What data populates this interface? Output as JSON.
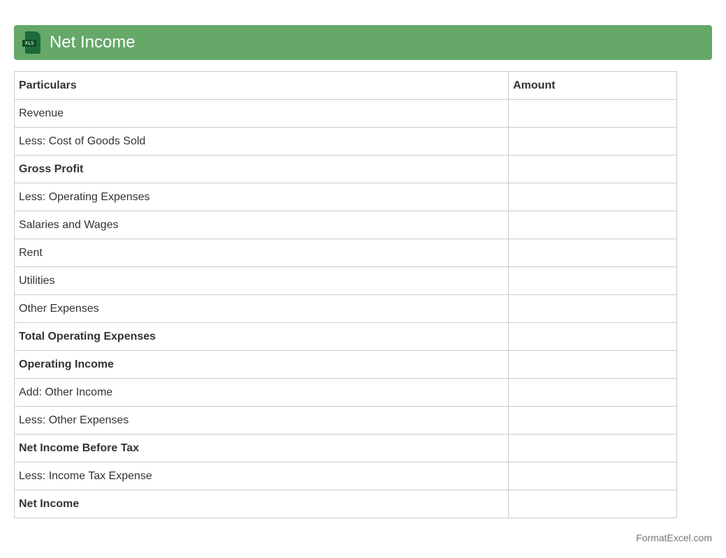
{
  "header": {
    "title": "Net Income",
    "icon": "xls-file-icon",
    "icon_label": "XLS",
    "color": "#65a868"
  },
  "table": {
    "columns": [
      "Particulars",
      "Amount"
    ],
    "rows": [
      {
        "label": "Revenue",
        "amount": "",
        "bold": false
      },
      {
        "label": "Less: Cost of Goods Sold",
        "amount": "",
        "bold": false
      },
      {
        "label": "Gross Profit",
        "amount": "",
        "bold": true
      },
      {
        "label": "Less: Operating Expenses",
        "amount": "",
        "bold": false
      },
      {
        "label": "Salaries and Wages",
        "amount": "",
        "bold": false
      },
      {
        "label": "Rent",
        "amount": "",
        "bold": false
      },
      {
        "label": "Utilities",
        "amount": "",
        "bold": false
      },
      {
        "label": "Other Expenses",
        "amount": "",
        "bold": false
      },
      {
        "label": "Total Operating Expenses",
        "amount": "",
        "bold": true
      },
      {
        "label": "Operating Income",
        "amount": "",
        "bold": true
      },
      {
        "label": "Add: Other Income",
        "amount": "",
        "bold": false
      },
      {
        "label": "Less: Other Expenses",
        "amount": "",
        "bold": false
      },
      {
        "label": "Net Income Before Tax",
        "amount": "",
        "bold": true
      },
      {
        "label": "Less: Income Tax Expense",
        "amount": "",
        "bold": false
      },
      {
        "label": "Net Income",
        "amount": "",
        "bold": true
      }
    ]
  },
  "footer": {
    "text": "FormatExcel.com"
  }
}
